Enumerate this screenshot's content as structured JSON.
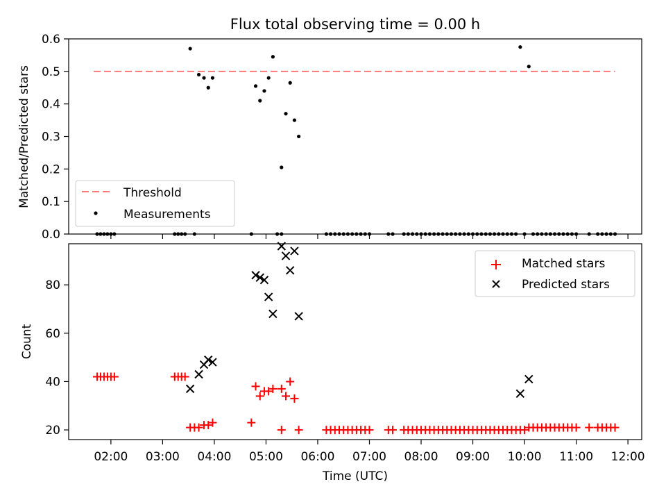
{
  "chart_data": [
    {
      "type": "scatter",
      "title": "Flux total observing time = 0.00 h",
      "xlabel": "",
      "ylabel": "Matched/Predicted stars",
      "ylim": [
        0,
        0.6
      ],
      "yticks": [
        "0.0",
        "0.1",
        "0.2",
        "0.3",
        "0.4",
        "0.5",
        "0.6"
      ],
      "legend_position": "lower-left",
      "threshold": {
        "name": "Threshold",
        "y": 0.5,
        "x_range": [
          "01:40",
          "11:45"
        ],
        "color": "#ff7777"
      },
      "series": [
        {
          "name": "Measurements",
          "marker": "dot",
          "color": "#000000",
          "points": [
            [
              "01:44",
              0
            ],
            [
              "01:48",
              0
            ],
            [
              "01:52",
              0
            ],
            [
              "01:56",
              0
            ],
            [
              "02:00",
              0
            ],
            [
              "02:04",
              0
            ],
            [
              "03:14",
              0
            ],
            [
              "03:18",
              0
            ],
            [
              "03:22",
              0
            ],
            [
              "03:26",
              0
            ],
            [
              "03:32",
              0.57
            ],
            [
              "03:37",
              0
            ],
            [
              "03:42",
              0.49
            ],
            [
              "03:48",
              0.48
            ],
            [
              "03:53",
              0.45
            ],
            [
              "03:58",
              0.48
            ],
            [
              "04:43",
              0
            ],
            [
              "04:48",
              0.455
            ],
            [
              "04:53",
              0.41
            ],
            [
              "04:58",
              0.44
            ],
            [
              "05:03",
              0.48
            ],
            [
              "05:08",
              0.545
            ],
            [
              "05:13",
              0
            ],
            [
              "05:18",
              0.205
            ],
            [
              "05:18",
              0
            ],
            [
              "05:23",
              0.37
            ],
            [
              "05:28",
              0.465
            ],
            [
              "05:33",
              0.35
            ],
            [
              "05:38",
              0.3
            ],
            [
              "06:10",
              0
            ],
            [
              "06:15",
              0
            ],
            [
              "06:20",
              0
            ],
            [
              "06:25",
              0
            ],
            [
              "06:30",
              0
            ],
            [
              "06:35",
              0
            ],
            [
              "06:40",
              0
            ],
            [
              "06:45",
              0
            ],
            [
              "06:50",
              0
            ],
            [
              "06:55",
              0
            ],
            [
              "07:00",
              0
            ],
            [
              "07:22",
              0
            ],
            [
              "07:27",
              0
            ],
            [
              "07:40",
              0
            ],
            [
              "07:45",
              0
            ],
            [
              "07:50",
              0
            ],
            [
              "07:55",
              0
            ],
            [
              "08:00",
              0
            ],
            [
              "08:05",
              0
            ],
            [
              "08:10",
              0
            ],
            [
              "08:15",
              0
            ],
            [
              "08:20",
              0
            ],
            [
              "08:25",
              0
            ],
            [
              "08:30",
              0
            ],
            [
              "08:35",
              0
            ],
            [
              "08:40",
              0
            ],
            [
              "08:45",
              0
            ],
            [
              "08:50",
              0
            ],
            [
              "08:55",
              0
            ],
            [
              "09:00",
              0
            ],
            [
              "09:05",
              0
            ],
            [
              "09:10",
              0
            ],
            [
              "09:15",
              0
            ],
            [
              "09:20",
              0
            ],
            [
              "09:25",
              0
            ],
            [
              "09:30",
              0
            ],
            [
              "09:35",
              0
            ],
            [
              "09:40",
              0
            ],
            [
              "09:45",
              0
            ],
            [
              "09:50",
              0
            ],
            [
              "09:55",
              0.575
            ],
            [
              "10:00",
              0
            ],
            [
              "10:05",
              0.515
            ],
            [
              "10:10",
              0
            ],
            [
              "10:15",
              0
            ],
            [
              "10:20",
              0
            ],
            [
              "10:25",
              0
            ],
            [
              "10:30",
              0
            ],
            [
              "10:35",
              0
            ],
            [
              "10:40",
              0
            ],
            [
              "10:45",
              0
            ],
            [
              "10:50",
              0
            ],
            [
              "10:55",
              0
            ],
            [
              "11:00",
              0
            ],
            [
              "11:15",
              0
            ],
            [
              "11:25",
              0
            ],
            [
              "11:30",
              0
            ],
            [
              "11:35",
              0
            ],
            [
              "11:40",
              0
            ],
            [
              "11:45",
              0
            ]
          ]
        }
      ]
    },
    {
      "type": "scatter",
      "title": "",
      "xlabel": "Time (UTC)",
      "ylabel": "Count",
      "xlim": [
        "01:11",
        "12:16"
      ],
      "xticks": [
        "02:00",
        "03:00",
        "04:00",
        "05:00",
        "06:00",
        "07:00",
        "08:00",
        "09:00",
        "10:00",
        "11:00",
        "12:00"
      ],
      "ylim": [
        16,
        97
      ],
      "yticks": [
        "20",
        "40",
        "60",
        "80"
      ],
      "legend_position": "upper-right",
      "series": [
        {
          "name": "Matched stars",
          "marker": "plus",
          "color": "#ff0000",
          "points": [
            [
              "01:44",
              42
            ],
            [
              "01:48",
              42
            ],
            [
              "01:52",
              42
            ],
            [
              "01:56",
              42
            ],
            [
              "02:00",
              42
            ],
            [
              "02:04",
              42
            ],
            [
              "03:14",
              42
            ],
            [
              "03:18",
              42
            ],
            [
              "03:22",
              42
            ],
            [
              "03:26",
              42
            ],
            [
              "03:32",
              21
            ],
            [
              "03:37",
              21
            ],
            [
              "03:42",
              21
            ],
            [
              "03:48",
              22
            ],
            [
              "03:53",
              22
            ],
            [
              "03:58",
              23
            ],
            [
              "04:43",
              23
            ],
            [
              "04:48",
              38
            ],
            [
              "04:53",
              34
            ],
            [
              "04:58",
              36
            ],
            [
              "05:03",
              36
            ],
            [
              "05:08",
              37
            ],
            [
              "05:18",
              37
            ],
            [
              "05:18",
              20
            ],
            [
              "05:23",
              34
            ],
            [
              "05:28",
              40
            ],
            [
              "05:33",
              33
            ],
            [
              "05:38",
              20
            ],
            [
              "06:10",
              20
            ],
            [
              "06:15",
              20
            ],
            [
              "06:20",
              20
            ],
            [
              "06:25",
              20
            ],
            [
              "06:30",
              20
            ],
            [
              "06:35",
              20
            ],
            [
              "06:40",
              20
            ],
            [
              "06:45",
              20
            ],
            [
              "06:50",
              20
            ],
            [
              "06:55",
              20
            ],
            [
              "07:00",
              20
            ],
            [
              "07:22",
              20
            ],
            [
              "07:27",
              20
            ],
            [
              "07:40",
              20
            ],
            [
              "07:45",
              20
            ],
            [
              "07:50",
              20
            ],
            [
              "07:55",
              20
            ],
            [
              "08:00",
              20
            ],
            [
              "08:05",
              20
            ],
            [
              "08:10",
              20
            ],
            [
              "08:15",
              20
            ],
            [
              "08:20",
              20
            ],
            [
              "08:25",
              20
            ],
            [
              "08:30",
              20
            ],
            [
              "08:35",
              20
            ],
            [
              "08:40",
              20
            ],
            [
              "08:45",
              20
            ],
            [
              "08:50",
              20
            ],
            [
              "08:55",
              20
            ],
            [
              "09:00",
              20
            ],
            [
              "09:05",
              20
            ],
            [
              "09:10",
              20
            ],
            [
              "09:15",
              20
            ],
            [
              "09:20",
              20
            ],
            [
              "09:25",
              20
            ],
            [
              "09:30",
              20
            ],
            [
              "09:35",
              20
            ],
            [
              "09:40",
              20
            ],
            [
              "09:45",
              20
            ],
            [
              "09:50",
              20
            ],
            [
              "09:55",
              20
            ],
            [
              "10:00",
              20
            ],
            [
              "10:05",
              21
            ],
            [
              "10:10",
              21
            ],
            [
              "10:15",
              21
            ],
            [
              "10:20",
              21
            ],
            [
              "10:25",
              21
            ],
            [
              "10:30",
              21
            ],
            [
              "10:35",
              21
            ],
            [
              "10:40",
              21
            ],
            [
              "10:45",
              21
            ],
            [
              "10:50",
              21
            ],
            [
              "10:55",
              21
            ],
            [
              "11:00",
              21
            ],
            [
              "11:15",
              21
            ],
            [
              "11:25",
              21
            ],
            [
              "11:30",
              21
            ],
            [
              "11:35",
              21
            ],
            [
              "11:40",
              21
            ],
            [
              "11:45",
              21
            ]
          ]
        },
        {
          "name": "Predicted stars",
          "marker": "x",
          "color": "#000000",
          "points": [
            [
              "03:32",
              37
            ],
            [
              "03:42",
              43
            ],
            [
              "03:48",
              47
            ],
            [
              "03:53",
              49
            ],
            [
              "03:58",
              48
            ],
            [
              "04:48",
              84
            ],
            [
              "04:53",
              83
            ],
            [
              "04:58",
              82
            ],
            [
              "05:03",
              75
            ],
            [
              "05:08",
              68
            ],
            [
              "05:18",
              96
            ],
            [
              "05:23",
              92
            ],
            [
              "05:28",
              86
            ],
            [
              "05:33",
              94
            ],
            [
              "05:38",
              67
            ],
            [
              "09:55",
              35
            ],
            [
              "10:05",
              41
            ]
          ]
        }
      ]
    }
  ]
}
